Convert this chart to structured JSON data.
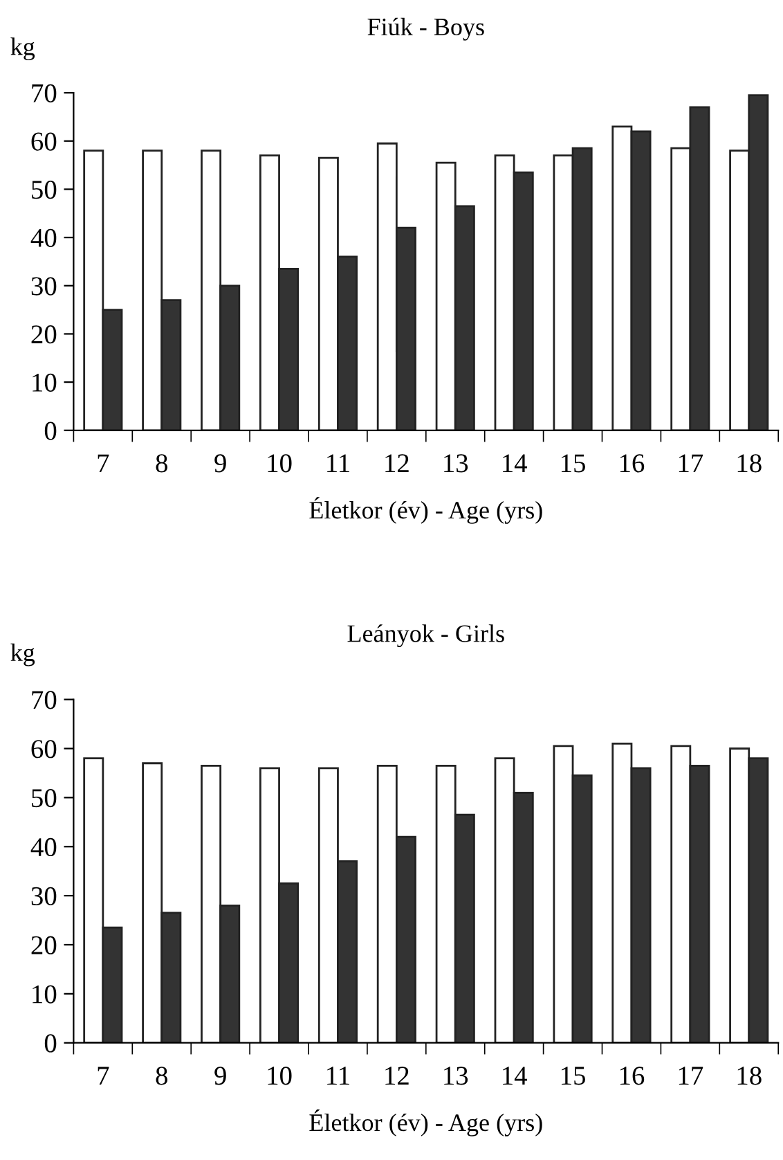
{
  "chart_data": [
    {
      "type": "bar",
      "title": "Fiúk - Boys",
      "ylabel": "kg",
      "xlabel": "Életkor (év) - Age (yrs)",
      "categories": [
        "7",
        "8",
        "9",
        "10",
        "11",
        "12",
        "13",
        "14",
        "15",
        "16",
        "17",
        "18"
      ],
      "series": [
        {
          "color": "#ffffff",
          "values": [
            58,
            58,
            58,
            57,
            56.5,
            59.5,
            55.5,
            57,
            57,
            63,
            58.5,
            58
          ]
        },
        {
          "color": "#333333",
          "values": [
            25,
            27,
            30,
            33.5,
            36,
            42,
            46.5,
            53.5,
            58.5,
            62,
            67,
            69.5
          ]
        }
      ],
      "ylim": [
        0,
        70
      ],
      "yticks": [
        0,
        10,
        20,
        30,
        40,
        50,
        60,
        70
      ],
      "grid": false,
      "legend": false
    },
    {
      "type": "bar",
      "title": "Leányok - Girls",
      "ylabel": "kg",
      "xlabel": "Életkor (év) - Age (yrs)",
      "categories": [
        "7",
        "8",
        "9",
        "10",
        "11",
        "12",
        "13",
        "14",
        "15",
        "16",
        "17",
        "18"
      ],
      "series": [
        {
          "color": "#ffffff",
          "values": [
            58,
            57,
            56.5,
            56,
            56,
            56.5,
            56.5,
            58,
            60.5,
            61,
            60.5,
            60
          ]
        },
        {
          "color": "#333333",
          "values": [
            23.5,
            26.5,
            28,
            32.5,
            37,
            42,
            46.5,
            51,
            54.5,
            56,
            56.5,
            58
          ]
        }
      ],
      "ylim": [
        0,
        70
      ],
      "yticks": [
        0,
        10,
        20,
        30,
        40,
        50,
        60,
        70
      ],
      "grid": false,
      "legend": false
    }
  ]
}
